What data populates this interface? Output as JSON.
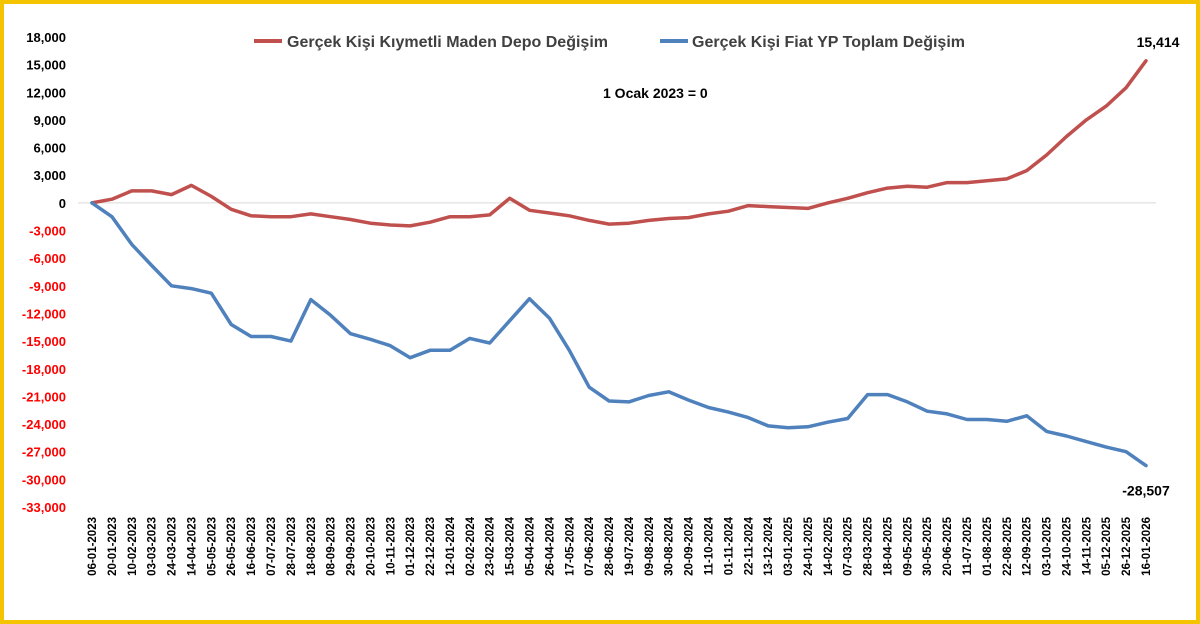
{
  "chart_data": {
    "type": "line",
    "title": "",
    "xlabel": "",
    "ylabel": "",
    "ylim": [
      -33000,
      18000
    ],
    "grid": false,
    "legend_position": "top",
    "annotation": "1 Ocak 2023 = 0",
    "y_ticks": [
      "18,000",
      "15,000",
      "12,000",
      "9,000",
      "6,000",
      "3,000",
      "0",
      "-3,000",
      "-6,000",
      "-9,000",
      "-12,000",
      "-15,000",
      "-18,000",
      "-21,000",
      "-24,000",
      "-27,000",
      "-30,000",
      "-33,000"
    ],
    "y_tick_values": [
      18000,
      15000,
      12000,
      9000,
      6000,
      3000,
      0,
      -3000,
      -6000,
      -9000,
      -12000,
      -15000,
      -18000,
      -21000,
      -24000,
      -27000,
      -30000,
      -33000
    ],
    "x_ticks": [
      "06-01-2023",
      "20-01-2023",
      "10-02-2023",
      "03-03-2023",
      "24-03-2023",
      "14-04-2023",
      "05-05-2023",
      "26-05-2023",
      "16-06-2023",
      "07-07-2023",
      "28-07-2023",
      "18-08-2023",
      "08-09-2023",
      "29-09-2023",
      "20-10-2023",
      "10-11-2023",
      "01-12-2023",
      "22-12-2023",
      "12-01-2024",
      "02-02-2024",
      "23-02-2024",
      "15-03-2024",
      "05-04-2024",
      "26-04-2024",
      "17-05-2024",
      "07-06-2024",
      "28-06-2024",
      "19-07-2024",
      "09-08-2024",
      "30-08-2024",
      "20-09-2024",
      "11-10-2024",
      "01-11-2024",
      "22-11-2024",
      "13-12-2024",
      "03-01-2025",
      "24-01-2025",
      "14-02-2025",
      "07-03-2025",
      "28-03-2025",
      "18-04-2025",
      "09-05-2025",
      "30-05-2025",
      "20-06-2025",
      "11-07-2025",
      "01-08-2025",
      "22-08-2025",
      "12-09-2025",
      "03-10-2025",
      "24-10-2025",
      "14-11-2025",
      "05-12-2025",
      "26-12-2025",
      "16-01-2026"
    ],
    "series": [
      {
        "name": "Gerçek Kişi Kıymetli Maden Depo Değişim",
        "color": "#c0504d",
        "end_label": "15,414",
        "x": [
          "06-01-2023",
          "20-01-2023",
          "10-02-2023",
          "03-03-2023",
          "24-03-2023",
          "14-04-2023",
          "05-05-2023",
          "26-05-2023",
          "16-06-2023",
          "07-07-2023",
          "28-07-2023",
          "18-08-2023",
          "08-09-2023",
          "29-09-2023",
          "20-10-2023",
          "10-11-2023",
          "01-12-2023",
          "22-12-2023",
          "12-01-2024",
          "02-02-2024",
          "23-02-2024",
          "15-03-2024",
          "05-04-2024",
          "26-04-2024",
          "17-05-2024",
          "07-06-2024",
          "28-06-2024",
          "19-07-2024",
          "09-08-2024",
          "30-08-2024",
          "20-09-2024",
          "11-10-2024",
          "01-11-2024",
          "22-11-2024",
          "13-12-2024",
          "03-01-2025",
          "24-01-2025",
          "14-02-2025",
          "07-03-2025",
          "28-03-2025",
          "18-04-2025",
          "09-05-2025",
          "30-05-2025",
          "20-06-2025",
          "11-07-2025",
          "01-08-2025",
          "22-08-2025",
          "12-09-2025",
          "03-10-2025",
          "24-10-2025",
          "14-11-2025",
          "05-12-2025",
          "26-12-2025",
          "16-01-2026"
        ],
        "values": [
          0,
          400,
          1300,
          1300,
          900,
          1900,
          700,
          -700,
          -1400,
          -1500,
          -1500,
          -1200,
          -1500,
          -1800,
          -2200,
          -2400,
          -2500,
          -2100,
          -1500,
          -1500,
          -1300,
          500,
          -800,
          -1100,
          -1400,
          -1900,
          -2300,
          -2200,
          -1900,
          -1700,
          -1600,
          -1200,
          -900,
          -300,
          -400,
          -500,
          -600,
          0,
          500,
          1100,
          1600,
          1800,
          1700,
          2200,
          2200,
          2400,
          2600,
          3500,
          5200,
          7200,
          9000,
          10500,
          12500,
          15414
        ]
      },
      {
        "name": "Gerçek Kişi Fiat YP Toplam Değişim",
        "color": "#4f81bd",
        "end_label": "-28,507",
        "x": [
          "06-01-2023",
          "20-01-2023",
          "10-02-2023",
          "03-03-2023",
          "24-03-2023",
          "14-04-2023",
          "05-05-2023",
          "26-05-2023",
          "16-06-2023",
          "07-07-2023",
          "28-07-2023",
          "18-08-2023",
          "08-09-2023",
          "29-09-2023",
          "20-10-2023",
          "10-11-2023",
          "01-12-2023",
          "22-12-2023",
          "12-01-2024",
          "02-02-2024",
          "23-02-2024",
          "15-03-2024",
          "05-04-2024",
          "26-04-2024",
          "17-05-2024",
          "07-06-2024",
          "28-06-2024",
          "19-07-2024",
          "09-08-2024",
          "30-08-2024",
          "20-09-2024",
          "11-10-2024",
          "01-11-2024",
          "22-11-2024",
          "13-12-2024",
          "03-01-2025",
          "24-01-2025",
          "14-02-2025",
          "07-03-2025",
          "28-03-2025",
          "18-04-2025",
          "09-05-2025",
          "30-05-2025",
          "20-06-2025",
          "11-07-2025",
          "01-08-2025",
          "22-08-2025",
          "12-09-2025",
          "03-10-2025",
          "24-10-2025",
          "14-11-2025",
          "05-12-2025",
          "26-12-2025",
          "16-01-2026"
        ],
        "values": [
          0,
          -1500,
          -4500,
          -6800,
          -9000,
          -9300,
          -9800,
          -13200,
          -14500,
          -14500,
          -15000,
          -10500,
          -12200,
          -14200,
          -14800,
          -15500,
          -16800,
          -16000,
          -16000,
          -14700,
          -15200,
          -12800,
          -10400,
          -12500,
          -16000,
          -20000,
          -21500,
          -21600,
          -20900,
          -20500,
          -21400,
          -22200,
          -22700,
          -23300,
          -24200,
          -24400,
          -24300,
          -23800,
          -23400,
          -20800,
          -20800,
          -21600,
          -22600,
          -22900,
          -23500,
          -23500,
          -23700,
          -23100,
          -24800,
          -25300,
          -25900,
          -26500,
          -27000,
          -28507
        ]
      }
    ]
  }
}
